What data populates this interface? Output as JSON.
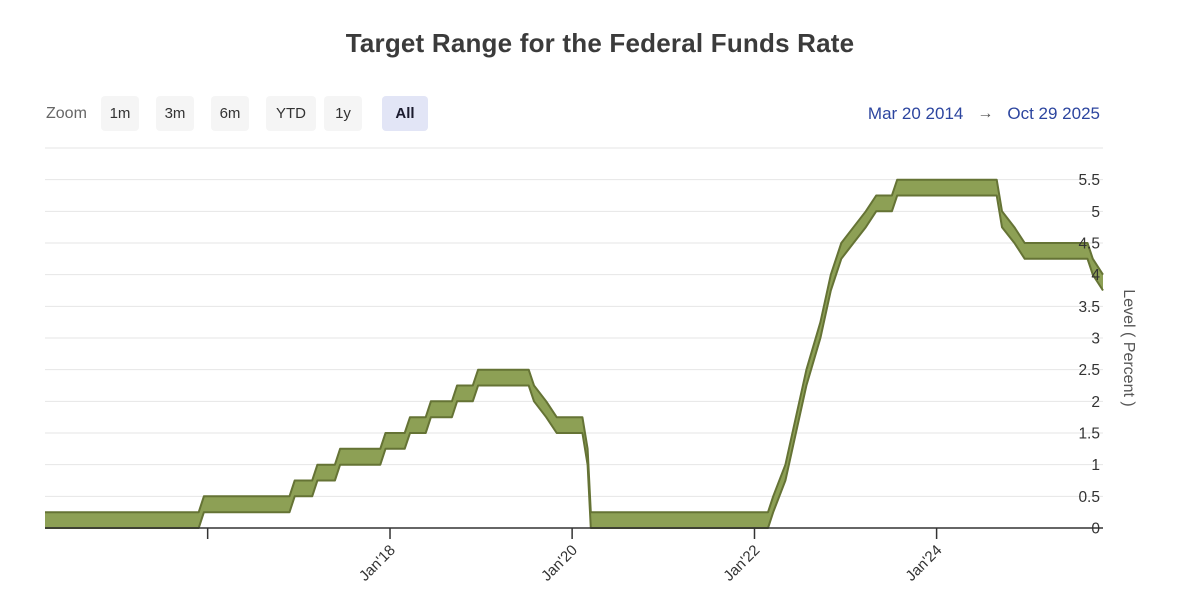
{
  "title": "Target Range for the Federal Funds Rate",
  "toolbar": {
    "zoom_label": "Zoom",
    "buttons": [
      {
        "label": "1m",
        "selected": false
      },
      {
        "label": "3m",
        "selected": false
      },
      {
        "label": "6m",
        "selected": false
      },
      {
        "label": "YTD",
        "selected": false
      },
      {
        "label": "1y",
        "selected": false
      },
      {
        "label": "All",
        "selected": true
      }
    ],
    "range_from": "Mar 20 2014",
    "range_arrow": "→",
    "range_to": "Oct 29 2025"
  },
  "chart_data": {
    "type": "arearange",
    "title": "Target Range for the Federal Funds Rate",
    "xlabel": "",
    "ylabel": "Level ( Percent )",
    "ylim": [
      0,
      6
    ],
    "y_ticks": [
      0,
      0.5,
      1,
      1.5,
      2,
      2.5,
      3,
      3.5,
      4,
      4.5,
      5,
      5.5
    ],
    "grid": true,
    "legend": "none",
    "x_range": [
      "2014-03-20",
      "2025-10-29"
    ],
    "x_ticks": [
      {
        "date": "2016-01-01",
        "label": ""
      },
      {
        "date": "2018-01-01",
        "label": "Jan'18"
      },
      {
        "date": "2020-01-01",
        "label": "Jan'20"
      },
      {
        "date": "2022-01-01",
        "label": "Jan'22"
      },
      {
        "date": "2024-01-01",
        "label": "Jan'24"
      }
    ],
    "series": [
      {
        "name": "Target Range",
        "points_format": [
          "date",
          "low_percent",
          "high_percent"
        ],
        "points": [
          [
            "2014-03-20",
            0.0,
            0.25
          ],
          [
            "2015-11-26",
            0.0,
            0.25
          ],
          [
            "2015-12-17",
            0.25,
            0.5
          ],
          [
            "2016-11-24",
            0.25,
            0.5
          ],
          [
            "2016-12-15",
            0.5,
            0.75
          ],
          [
            "2017-02-23",
            0.5,
            0.75
          ],
          [
            "2017-03-16",
            0.75,
            1.0
          ],
          [
            "2017-05-25",
            0.75,
            1.0
          ],
          [
            "2017-06-15",
            1.0,
            1.25
          ],
          [
            "2017-11-23",
            1.0,
            1.25
          ],
          [
            "2017-12-14",
            1.25,
            1.5
          ],
          [
            "2018-03-01",
            1.25,
            1.5
          ],
          [
            "2018-03-22",
            1.5,
            1.75
          ],
          [
            "2018-05-24",
            1.5,
            1.75
          ],
          [
            "2018-06-14",
            1.75,
            2.0
          ],
          [
            "2018-09-06",
            1.75,
            2.0
          ],
          [
            "2018-09-27",
            2.0,
            2.25
          ],
          [
            "2018-11-29",
            2.0,
            2.25
          ],
          [
            "2018-12-20",
            2.25,
            2.5
          ],
          [
            "2019-07-11",
            2.25,
            2.5
          ],
          [
            "2019-08-01",
            2.0,
            2.25
          ],
          [
            "2019-09-19",
            1.75,
            2.0
          ],
          [
            "2019-10-31",
            1.5,
            1.75
          ],
          [
            "2020-02-11",
            1.5,
            1.75
          ],
          [
            "2020-03-03",
            1.0,
            1.25
          ],
          [
            "2020-03-16",
            0.0,
            0.25
          ],
          [
            "2022-02-24",
            0.0,
            0.25
          ],
          [
            "2022-03-17",
            0.25,
            0.5
          ],
          [
            "2022-05-05",
            0.75,
            1.0
          ],
          [
            "2022-06-16",
            1.5,
            1.75
          ],
          [
            "2022-07-28",
            2.25,
            2.5
          ],
          [
            "2022-09-22",
            3.0,
            3.25
          ],
          [
            "2022-11-03",
            3.75,
            4.0
          ],
          [
            "2022-12-15",
            4.25,
            4.5
          ],
          [
            "2023-02-02",
            4.5,
            4.75
          ],
          [
            "2023-03-23",
            4.75,
            5.0
          ],
          [
            "2023-05-04",
            5.0,
            5.25
          ],
          [
            "2023-07-06",
            5.0,
            5.25
          ],
          [
            "2023-07-27",
            5.25,
            5.5
          ],
          [
            "2024-08-29",
            5.25,
            5.5
          ],
          [
            "2024-09-19",
            4.75,
            5.0
          ],
          [
            "2024-11-08",
            4.5,
            4.75
          ],
          [
            "2024-12-19",
            4.25,
            4.5
          ],
          [
            "2025-08-28",
            4.25,
            4.5
          ],
          [
            "2025-09-18",
            4.0,
            4.25
          ],
          [
            "2025-10-29",
            3.75,
            4.0
          ]
        ]
      }
    ],
    "colors": {
      "band_fill": "#8da055",
      "band_edge": "#657335",
      "grid": "#e6e6e6",
      "axis": "#333333",
      "tick_label": "#333333",
      "axis_title": "#555555"
    }
  }
}
